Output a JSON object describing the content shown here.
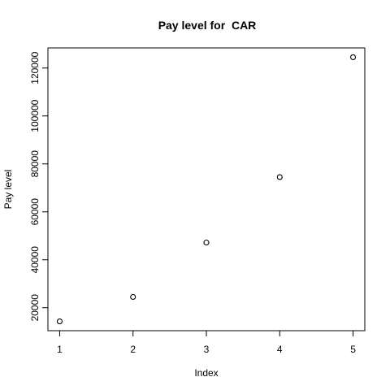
{
  "chart_data": {
    "type": "scatter",
    "title": "Pay level for  CAR",
    "xlabel": "Index",
    "ylabel": "Pay level",
    "x": [
      1,
      2,
      3,
      4,
      5
    ],
    "y": [
      14300,
      24500,
      47200,
      74500,
      124500
    ],
    "xticks": [
      1,
      2,
      3,
      4,
      5
    ],
    "yticks": [
      20000,
      40000,
      60000,
      80000,
      100000,
      120000
    ],
    "xlim": [
      0.84,
      5.16
    ],
    "ylim": [
      10424,
      128376
    ],
    "grid": false,
    "marker": "open-circle",
    "colors": {
      "points": "#000000",
      "axes": "#000000",
      "background": "#ffffff"
    }
  }
}
